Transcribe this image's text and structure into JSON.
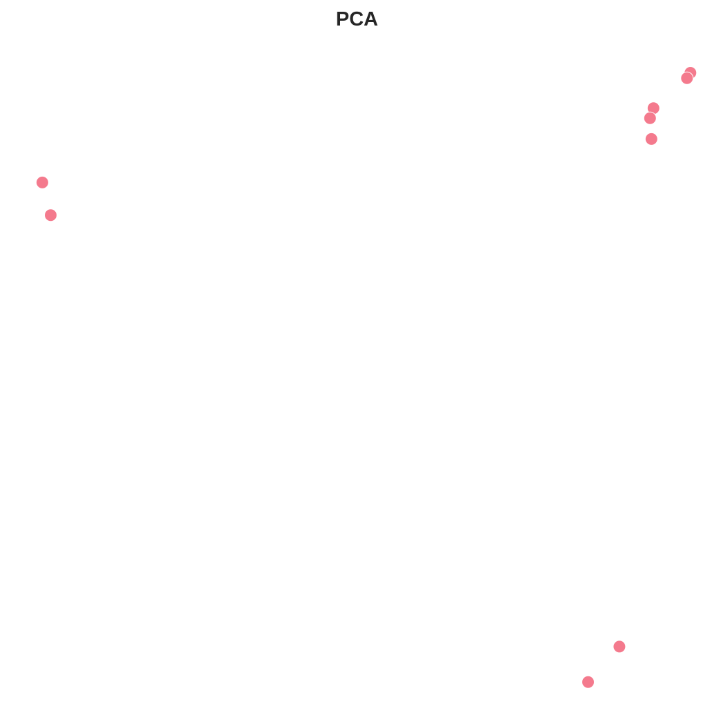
{
  "chart_data": {
    "type": "scatter",
    "title": "PCA",
    "xlabel": "",
    "ylabel": "",
    "grid": false,
    "axes_visible": false,
    "xlim": [
      0,
      100
    ],
    "ylim": [
      0,
      100
    ],
    "point_color": "#f47a8d",
    "x": [
      97.9,
      97.4,
      92.6,
      92.1,
      92.3,
      4.8,
      6.0,
      87.7,
      83.2
    ],
    "y": [
      95.0,
      94.2,
      89.7,
      88.2,
      85.1,
      78.6,
      73.7,
      9.2,
      3.9
    ]
  }
}
